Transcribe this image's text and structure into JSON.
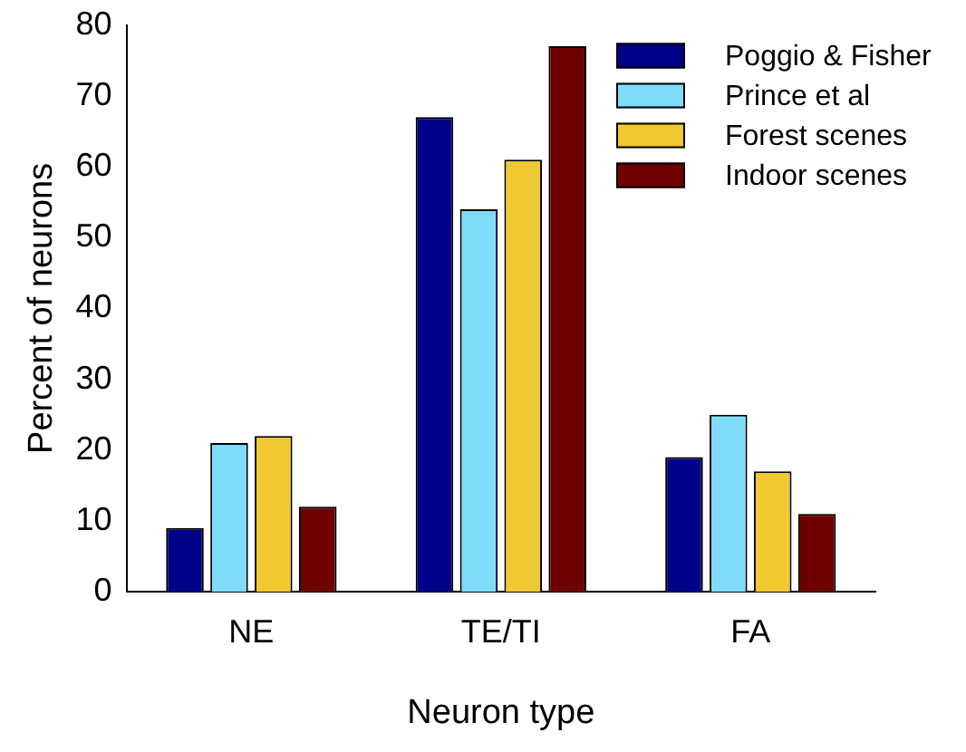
{
  "chart_data": {
    "type": "bar",
    "xlabel": "Neuron type",
    "ylabel": "Percent of neurons",
    "categories": [
      "NE",
      "TE/TI",
      "FA"
    ],
    "series": [
      {
        "name": "Poggio & Fisher",
        "color": "#000088",
        "values": [
          9,
          67,
          19
        ]
      },
      {
        "name": "Prince et al",
        "color": "#7fdcf8",
        "values": [
          21,
          54,
          25
        ]
      },
      {
        "name": "Forest scenes",
        "color": "#f0c832",
        "values": [
          22,
          61,
          17
        ]
      },
      {
        "name": "Indoor scenes",
        "color": "#6e0000",
        "values": [
          12,
          77,
          11
        ]
      }
    ],
    "ylim": [
      0,
      80
    ],
    "yticks": [
      0,
      10,
      20,
      30,
      40,
      50,
      60,
      70,
      80
    ],
    "grid": false,
    "legend": "top right"
  }
}
